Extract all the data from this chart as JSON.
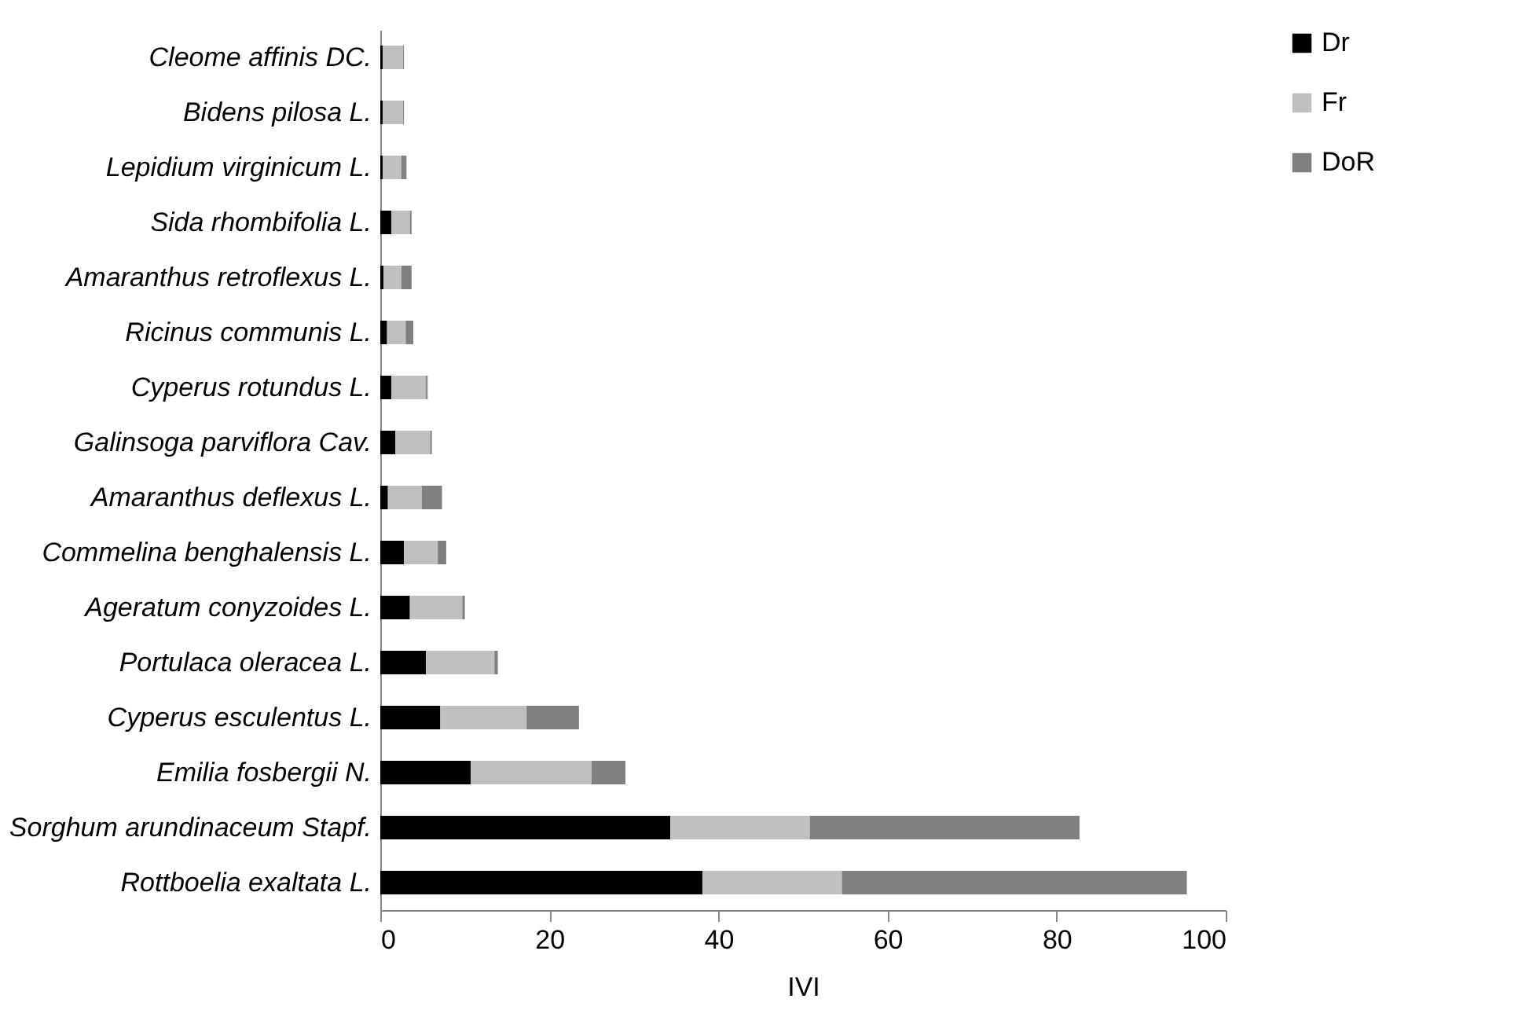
{
  "chart_data": {
    "type": "bar",
    "orientation": "horizontal",
    "stacked": true,
    "xlabel": "IVI",
    "xlim": [
      0,
      100
    ],
    "xticks": [
      0,
      20,
      40,
      60,
      80,
      100
    ],
    "grid": false,
    "legend": "top right",
    "categories": [
      "Cleome affinis DC.",
      "Bidens pilosa L.",
      "Lepidium virginicum L.",
      "Sida rhombifolia L.",
      "Amaranthus retroflexus L.",
      "Ricinus communis L.",
      "Cyperus rotundus L.",
      "Galinsoga parviflora Cav.",
      "Amaranthus deflexus L.",
      "Commelina benghalensis L.",
      "Ageratum conyzoides L.",
      "Portulaca oleracea L.",
      "Cyperus esculentus L.",
      "Emilia fosbergii N.",
      "Sorghum arundinaceum Stapf.",
      "Rottboelia exaltata L."
    ],
    "series": [
      {
        "name": "Dr",
        "color": "#000000",
        "values": [
          0.3,
          0.3,
          0.3,
          1.3,
          0.4,
          0.8,
          1.3,
          1.8,
          0.9,
          2.8,
          3.5,
          5.4,
          7.1,
          10.7,
          34.3,
          38.1
        ]
      },
      {
        "name": "Fr",
        "color": "#c0c0c0",
        "values": [
          2.4,
          2.4,
          2.2,
          2.2,
          2.1,
          2.2,
          4.1,
          4.1,
          4.0,
          4.0,
          6.2,
          8.1,
          10.2,
          14.3,
          16.5,
          16.5
        ]
      },
      {
        "name": "DoR",
        "color": "#808080",
        "values": [
          0.1,
          0.1,
          0.6,
          0.2,
          1.2,
          0.9,
          0.2,
          0.2,
          2.4,
          1.0,
          0.3,
          0.4,
          6.2,
          4.0,
          31.9,
          40.8
        ]
      }
    ]
  }
}
